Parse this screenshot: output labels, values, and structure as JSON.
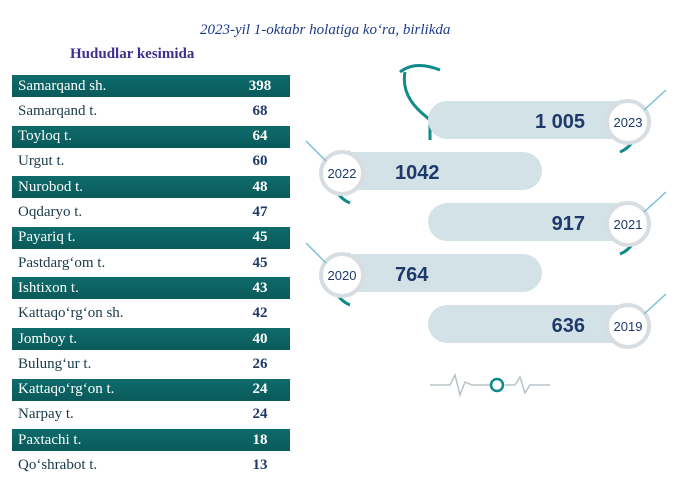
{
  "subtitle": "2023-yil 1-oktabr holatiga ko‘ra, birlikda",
  "section_title": "Hududlar kesimida",
  "regions": [
    {
      "name": "Samarqand sh.",
      "value": "398"
    },
    {
      "name": "Samarqand t.",
      "value": "68"
    },
    {
      "name": "Toyloq t.",
      "value": "64"
    },
    {
      "name": "Urgut t.",
      "value": "60"
    },
    {
      "name": "Nurobod t.",
      "value": "48"
    },
    {
      "name": "Oqdaryo t.",
      "value": "47"
    },
    {
      "name": "Payariq t.",
      "value": "45"
    },
    {
      "name": "Pastdarg‘om t.",
      "value": "45"
    },
    {
      "name": "Ishtixon t.",
      "value": "43"
    },
    {
      "name": "Kattaqo‘rg‘on sh.",
      "value": "42"
    },
    {
      "name": "Jomboy t.",
      "value": "40"
    },
    {
      "name": "Bulung‘ur t.",
      "value": "26"
    },
    {
      "name": "Kattaqo‘rg‘on t.",
      "value": "24"
    },
    {
      "name": "Narpay t.",
      "value": "24"
    },
    {
      "name": "Paxtachi t.",
      "value": "18"
    },
    {
      "name": "Qo‘shrabot t.",
      "value": "13"
    }
  ],
  "chart_data": {
    "type": "bar",
    "categories": [
      "2023",
      "2022",
      "2021",
      "2020",
      "2019"
    ],
    "values": [
      1005,
      1042,
      917,
      764,
      636
    ],
    "value_labels": [
      "1 005",
      "1042",
      "917",
      "764",
      "636"
    ]
  },
  "colors": {
    "dark_row": "#0f6b6b",
    "accent": "#1f3a6a",
    "pill": "#d3e2e7"
  }
}
